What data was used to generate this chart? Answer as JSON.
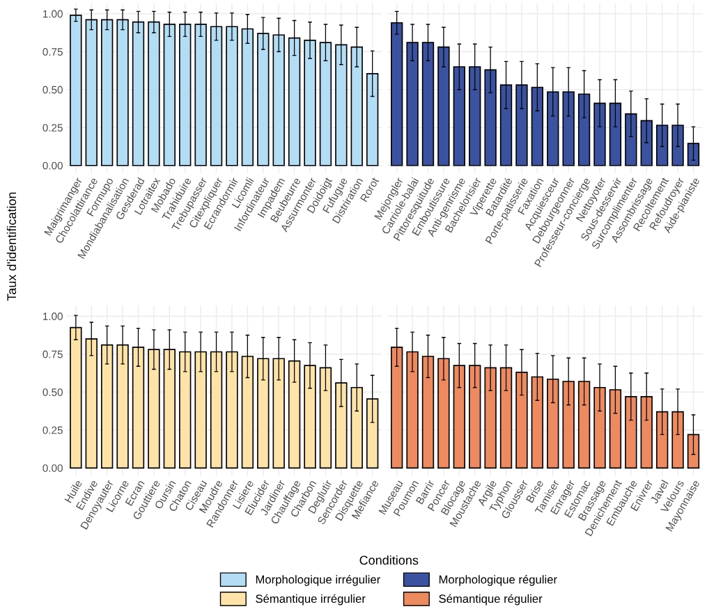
{
  "chart_data": [
    {
      "type": "bar",
      "ylabel": "Taux d'identification",
      "legend_title": "Conditions",
      "legend": "bottom",
      "grid": true,
      "categories": [
        "Maigrimanger",
        "Chocolattirance",
        "Formupo",
        "Mondiabanalisation",
        "Gesderad",
        "Lotraitex",
        "Mobado",
        "Trahiduire",
        "Trebupasser",
        "Citexpliquer",
        "Ecrandormir",
        "Licomli",
        "Infordinateur",
        "Impadem",
        "Beubeurre",
        "Assurmonter",
        "Doidoigt",
        "Fufugue",
        "Distriration",
        "Rorot"
      ],
      "series": [
        {
          "name": "Morphologique irrégulier",
          "color": "#b3dcf5",
          "values": [
            0.99,
            0.96,
            0.96,
            0.96,
            0.945,
            0.945,
            0.93,
            0.93,
            0.93,
            0.915,
            0.915,
            0.9,
            0.87,
            0.86,
            0.84,
            0.825,
            0.81,
            0.795,
            0.78,
            0.605
          ],
          "errors": [
            0.04,
            0.065,
            0.065,
            0.065,
            0.07,
            0.07,
            0.08,
            0.08,
            0.08,
            0.09,
            0.09,
            0.095,
            0.105,
            0.11,
            0.115,
            0.12,
            0.12,
            0.13,
            0.13,
            0.15
          ]
        }
      ],
      "ylim": [
        -0.05,
        1.07
      ],
      "yticks": [
        {
          "value": 0,
          "label": "0.00"
        },
        {
          "value": 0.25,
          "label": "0.25"
        },
        {
          "value": 0.5,
          "label": "0.50"
        },
        {
          "value": 0.75,
          "label": "0.75"
        },
        {
          "value": 1,
          "label": "1.00"
        }
      ]
    },
    {
      "type": "bar",
      "grid": true,
      "tick_labels": "x",
      "categories": [
        "Mejongler",
        "Carriole-balai",
        "Pittoresquitude",
        "Emboutissure",
        "Anti-genrisme",
        "Bachelorisier",
        "Viperette",
        "Batardité",
        "Porte-patisserie",
        "Faxation",
        "Acquiesceur",
        "Debourgeonner",
        "Professeur-concierge",
        "Nettoyoter",
        "Sous-desservir",
        "Surcomplimenter",
        "Assombrissage",
        "Recoltement",
        "Refoudroyer",
        "Aide-pianiste"
      ],
      "series": [
        {
          "name": "Morphologique régulier",
          "color": "#3a52a0",
          "values": [
            0.94,
            0.81,
            0.81,
            0.78,
            0.65,
            0.65,
            0.63,
            0.53,
            0.53,
            0.515,
            0.485,
            0.485,
            0.47,
            0.41,
            0.41,
            0.34,
            0.295,
            0.265,
            0.265,
            0.145
          ],
          "errors": [
            0.075,
            0.12,
            0.12,
            0.13,
            0.15,
            0.15,
            0.15,
            0.155,
            0.155,
            0.155,
            0.16,
            0.16,
            0.155,
            0.155,
            0.155,
            0.15,
            0.145,
            0.14,
            0.14,
            0.11
          ]
        }
      ],
      "ylim": [
        -0.05,
        1.07
      ],
      "yticks": [
        {
          "value": 0,
          "label": null
        },
        {
          "value": 0.25,
          "label": null
        },
        {
          "value": 0.5,
          "label": null
        },
        {
          "value": 0.75,
          "label": null
        },
        {
          "value": 1,
          "label": null
        }
      ]
    },
    {
      "type": "bar",
      "grid": true,
      "categories": [
        "Huile",
        "Endive",
        "Denoyauter",
        "Licorne",
        "Ecran",
        "Gouttiere",
        "Oursin",
        "Chaton",
        "Ciseau",
        "Moudre",
        "Randonner",
        "Lisiere",
        "Elucider",
        "Jardiner",
        "Chauffage",
        "Charbon",
        "Deglutir",
        "Sencorder",
        "Disquette",
        "Mefiance"
      ],
      "series": [
        {
          "name": "Sémantique irrégulier",
          "color": "#fde3a7",
          "values": [
            0.925,
            0.85,
            0.81,
            0.81,
            0.795,
            0.78,
            0.78,
            0.765,
            0.765,
            0.765,
            0.765,
            0.735,
            0.72,
            0.72,
            0.705,
            0.675,
            0.66,
            0.56,
            0.53,
            0.455
          ],
          "errors": [
            0.08,
            0.11,
            0.125,
            0.125,
            0.125,
            0.13,
            0.13,
            0.13,
            0.13,
            0.13,
            0.13,
            0.14,
            0.14,
            0.14,
            0.14,
            0.15,
            0.15,
            0.155,
            0.155,
            0.155
          ]
        }
      ],
      "ylim": [
        -0.05,
        1.07
      ],
      "yticks": [
        {
          "value": 0,
          "label": "0.00"
        },
        {
          "value": 0.25,
          "label": "0.25"
        },
        {
          "value": 0.5,
          "label": "0.50"
        },
        {
          "value": 0.75,
          "label": "0.75"
        },
        {
          "value": 1,
          "label": "1.00"
        }
      ]
    },
    {
      "type": "bar",
      "grid": true,
      "tick_labels": "x",
      "categories": [
        "Museau",
        "Poumon",
        "Barrir",
        "Poncer",
        "Blocage",
        "Moustache",
        "Argile",
        "Typhon",
        "Glousser",
        "Brise",
        "Tamiser",
        "Enrager",
        "Estomac",
        "Brassage",
        "Denichement",
        "Embauche",
        "Enivrer",
        "Javel",
        "Velours",
        "Mayonnaise"
      ],
      "series": [
        {
          "name": "Sémantique régulier",
          "color": "#ee8a5f",
          "values": [
            0.795,
            0.765,
            0.735,
            0.72,
            0.675,
            0.675,
            0.66,
            0.66,
            0.63,
            0.6,
            0.585,
            0.57,
            0.57,
            0.53,
            0.515,
            0.47,
            0.47,
            0.37,
            0.37,
            0.22
          ],
          "errors": [
            0.125,
            0.13,
            0.14,
            0.14,
            0.145,
            0.145,
            0.15,
            0.15,
            0.15,
            0.155,
            0.155,
            0.155,
            0.155,
            0.155,
            0.155,
            0.155,
            0.155,
            0.15,
            0.15,
            0.13
          ]
        }
      ],
      "ylim": [
        -0.05,
        1.07
      ],
      "yticks": [
        {
          "value": 0,
          "label": null
        },
        {
          "value": 0.25,
          "label": null
        },
        {
          "value": 0.5,
          "label": null
        },
        {
          "value": 0.75,
          "label": null
        },
        {
          "value": 1,
          "label": null
        }
      ]
    }
  ]
}
